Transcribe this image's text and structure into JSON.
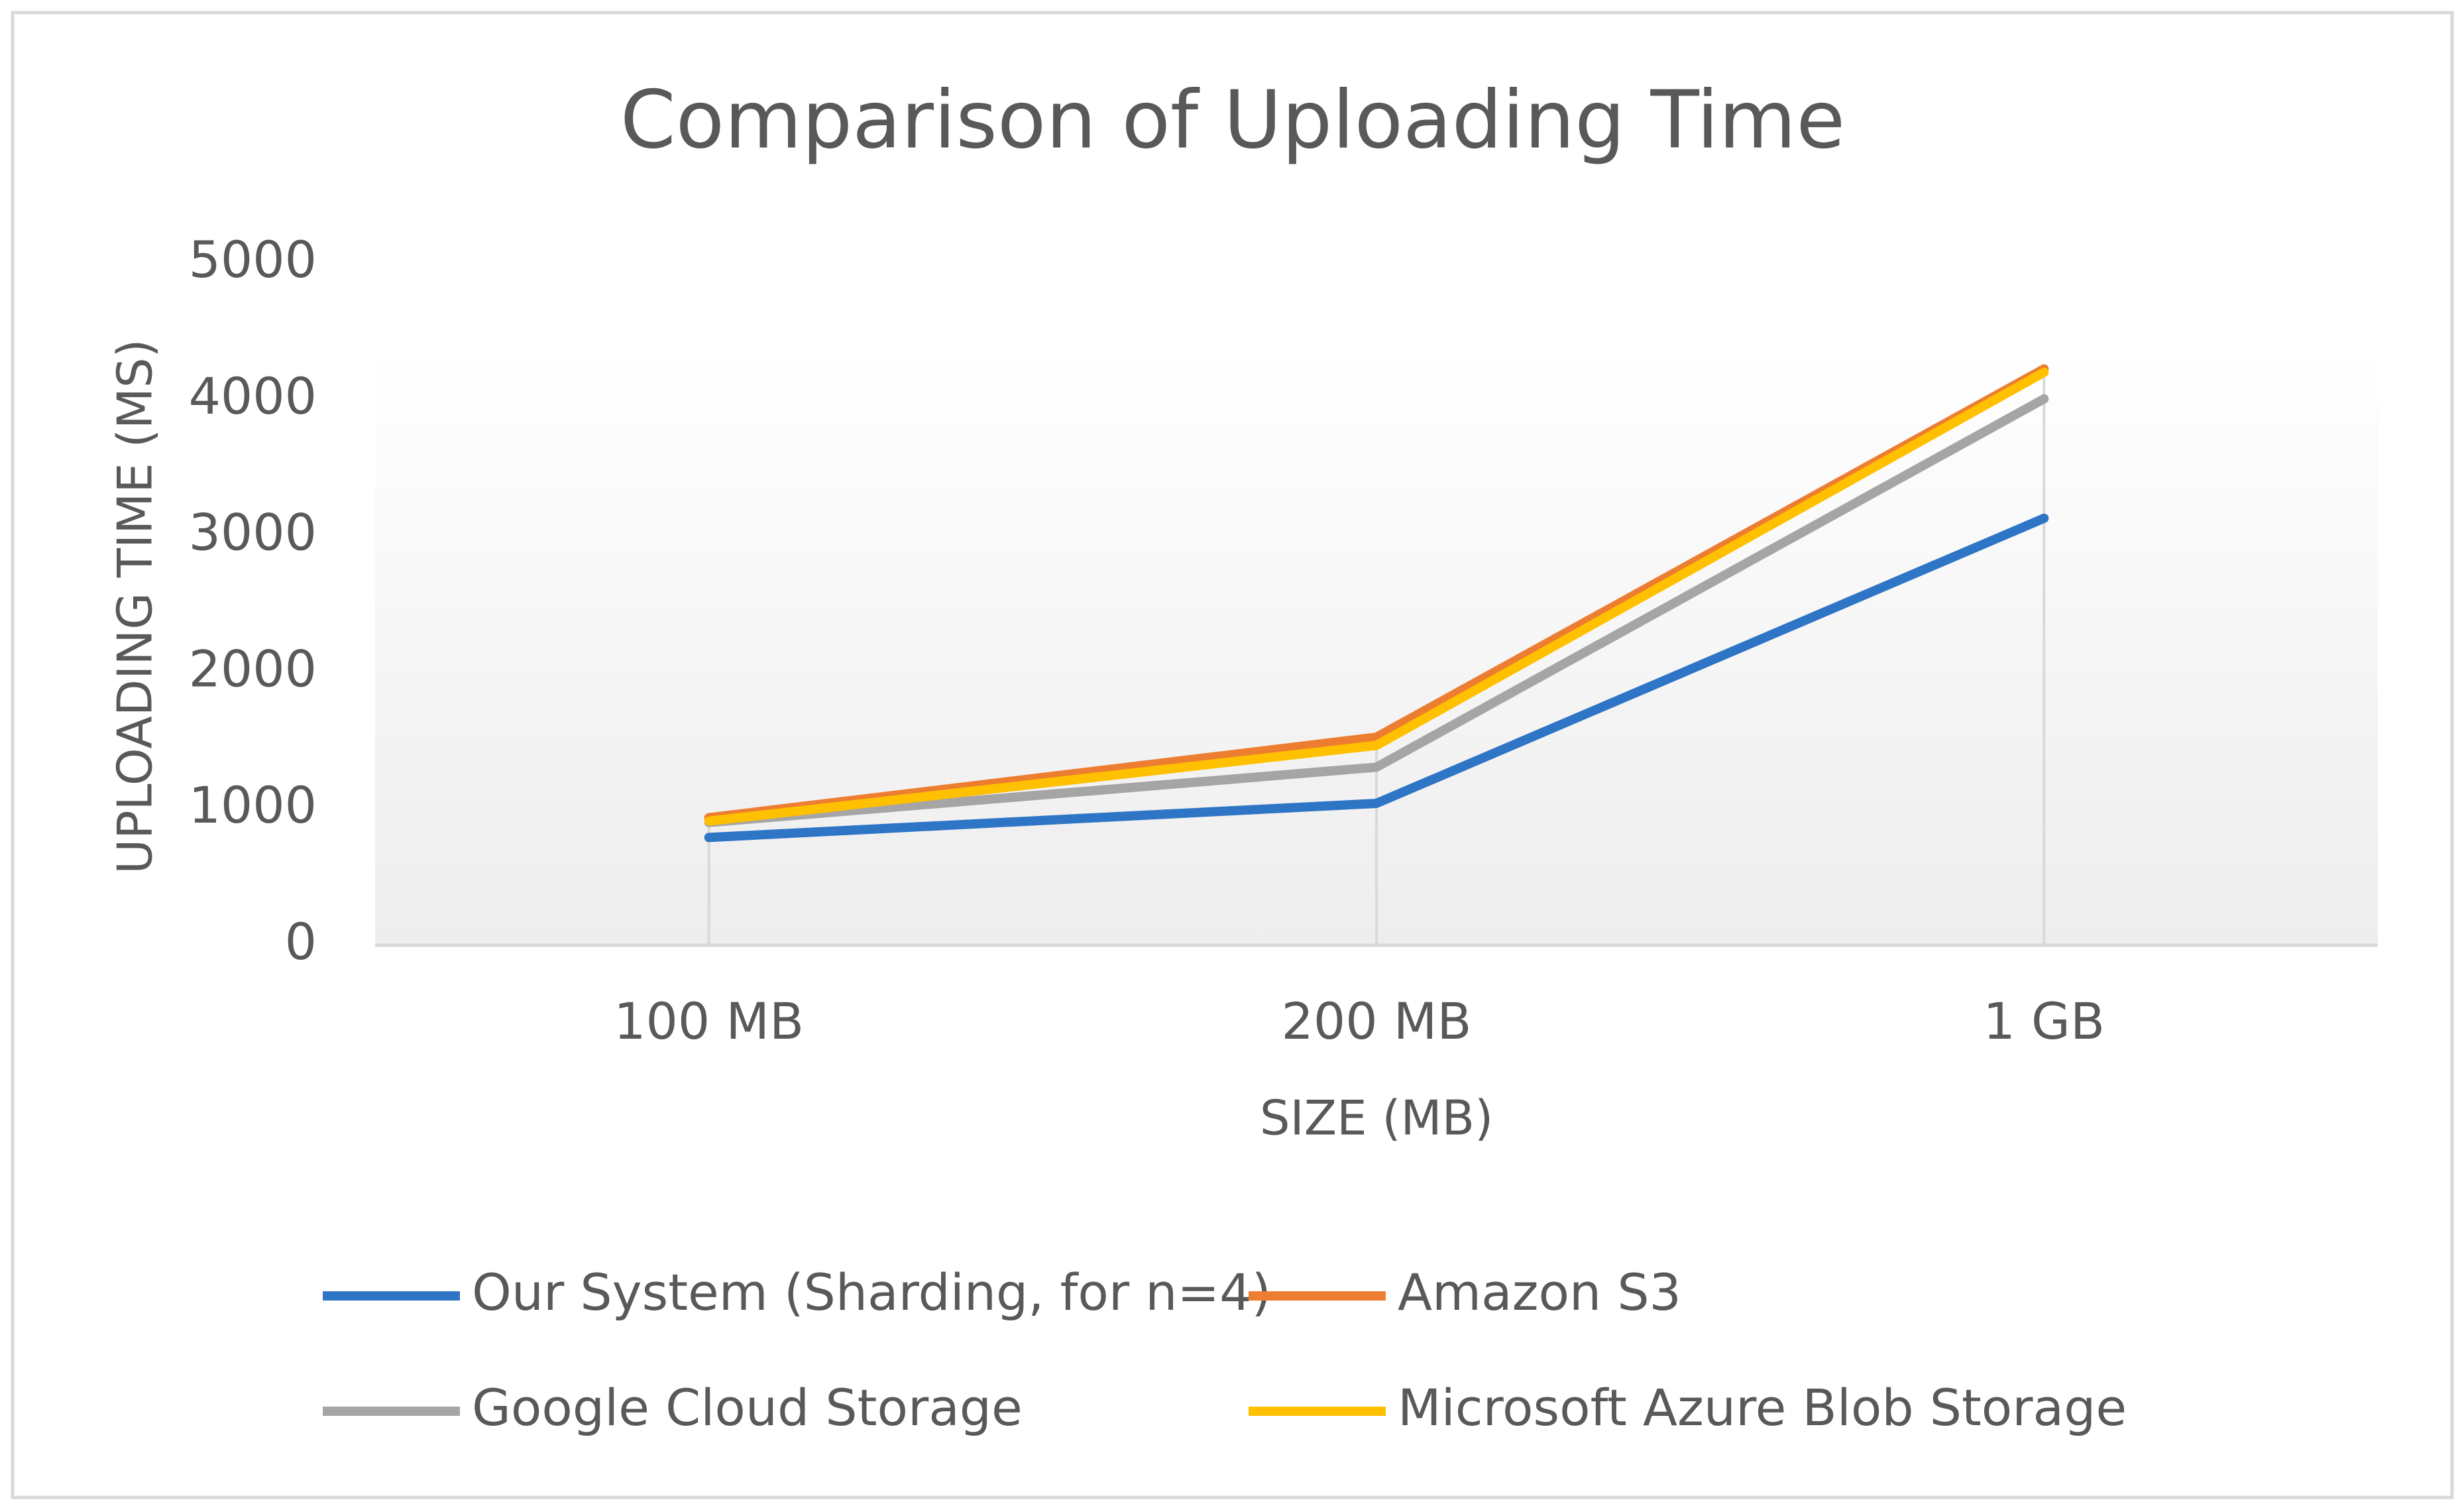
{
  "chart_data": {
    "type": "line",
    "title": "Comparison of Uploading Time",
    "x_label": "SIZE (MB)",
    "y_label": "UPLOADING TIME (MS)",
    "categories": [
      "100 MB",
      "200 MB",
      "1 GB"
    ],
    "series": [
      {
        "name": "Our System (Sharding, for n=4)",
        "color": "#2e75c6",
        "values": [
          790,
          1040,
          3130
        ]
      },
      {
        "name": "Amazon S3",
        "color": "#ed7d31",
        "values": [
          935,
          1525,
          4225
        ]
      },
      {
        "name": "Google Cloud Storage",
        "color": "#a5a5a5",
        "values": [
          900,
          1305,
          4005
        ]
      },
      {
        "name": "Microsoft Azure Blob Storage",
        "color": "#ffc000",
        "values": [
          910,
          1465,
          4200
        ]
      }
    ],
    "ylim": [
      0,
      5000
    ],
    "yticks": [
      0,
      1000,
      2000,
      3000,
      4000,
      5000
    ],
    "legend": "bottom"
  }
}
